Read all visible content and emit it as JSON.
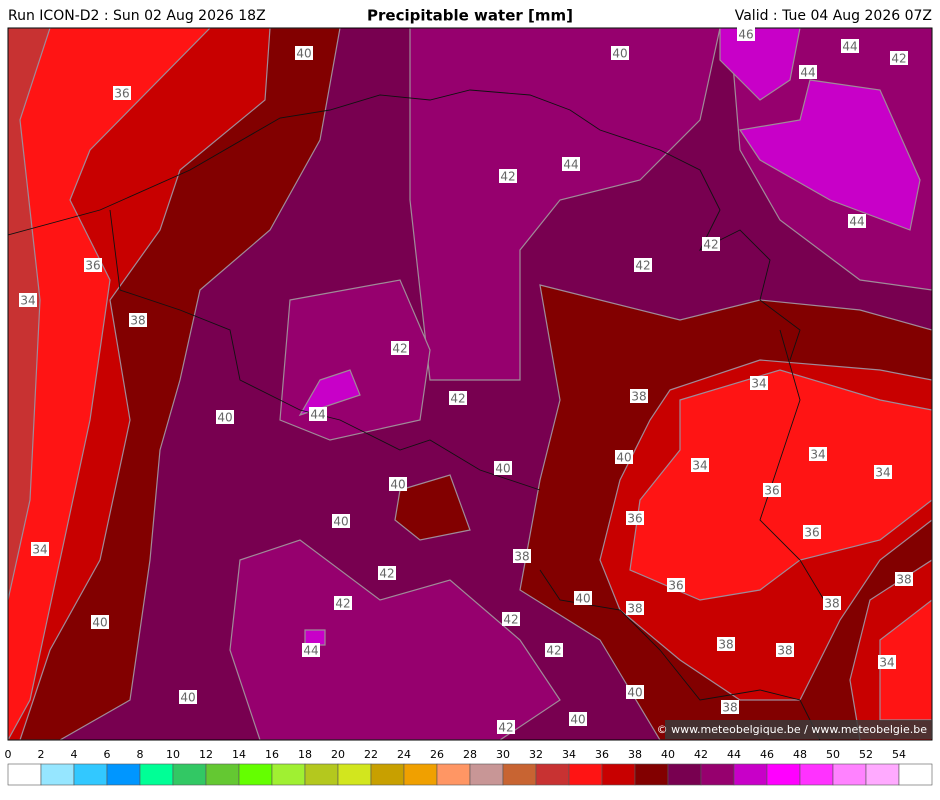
{
  "header": {
    "left": "Run ICON-D2 : Sun 02 Aug 2026 18Z",
    "title": "Precipitable water [mm]",
    "right": "Valid : Tue 04 Aug 2026 07Z"
  },
  "map": {
    "credit": "© www.meteobelgique.be / www.meteobelgie.be",
    "contour_labels": [
      "40",
      "40",
      "46",
      "44",
      "42",
      "44",
      "36",
      "44",
      "42",
      "44",
      "42",
      "42",
      "36",
      "34",
      "38",
      "42",
      "34",
      "38",
      "42",
      "44",
      "40",
      "40",
      "34",
      "34",
      "34",
      "40",
      "40",
      "36",
      "36",
      "40",
      "36",
      "34",
      "38",
      "42",
      "38",
      "36",
      "40",
      "38",
      "38",
      "42",
      "42",
      "40",
      "38",
      "38",
      "42",
      "44",
      "34",
      "40",
      "40",
      "38",
      "40",
      "42"
    ]
  },
  "colorbar": {
    "ticks": [
      0,
      2,
      4,
      6,
      8,
      10,
      12,
      14,
      16,
      18,
      20,
      22,
      24,
      26,
      28,
      30,
      32,
      34,
      36,
      38,
      40,
      42,
      44,
      46,
      48,
      50,
      52,
      54
    ],
    "colors": [
      "#ffffff",
      "#96e6ff",
      "#32c8ff",
      "#0096ff",
      "#00ff96",
      "#32c864",
      "#64c832",
      "#64ff00",
      "#a0f032",
      "#b4c81e",
      "#d2e61e",
      "#c8a000",
      "#f0a000",
      "#ff9664",
      "#c89696",
      "#c86432",
      "#c83232",
      "#ff1414",
      "#c80000",
      "#820000",
      "#780050",
      "#96006e",
      "#c800c8",
      "#ff00ff",
      "#ff32ff",
      "#ff82ff",
      "#ffaaff",
      "#ffffff"
    ]
  }
}
